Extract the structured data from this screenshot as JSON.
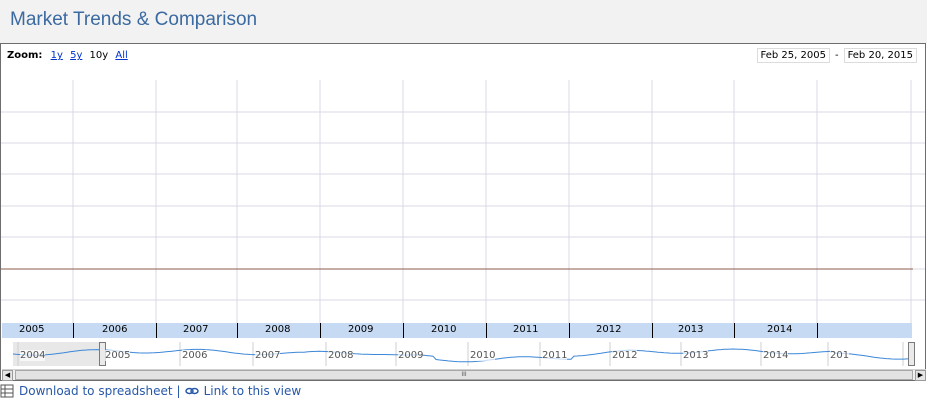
{
  "header": {
    "title": "Market Trends & Comparison"
  },
  "zoom": {
    "label": "Zoom:",
    "options": [
      "1y",
      "5y",
      "10y",
      "All"
    ],
    "selected": "10y"
  },
  "date_range": {
    "start": "Feb 25, 2005",
    "separator": "-",
    "end": "Feb 20, 2015"
  },
  "timeline": {
    "years": [
      "2005",
      "2006",
      "2007",
      "2008",
      "2009",
      "2010",
      "2011",
      "2012",
      "2013",
      "2014"
    ]
  },
  "overview": {
    "years": [
      "2004",
      "2005",
      "2006",
      "2007",
      "2008",
      "2009",
      "2010",
      "2011",
      "2012",
      "2013",
      "2014",
      "201"
    ]
  },
  "scrollbar": {
    "grip": "III"
  },
  "footer": {
    "download_label": "Download to spreadsheet",
    "separator": "|",
    "link_label": "Link to this view"
  },
  "colors": {
    "title": "#3b6aa0",
    "axis_band": "#c6daf4",
    "series_line": "#3c87d8",
    "flat_line": "#8b5a4a",
    "grid": "#d9d9e6"
  },
  "icons": [
    "spreadsheet-icon",
    "link-icon",
    "scroll-left-icon",
    "scroll-right-icon"
  ]
}
